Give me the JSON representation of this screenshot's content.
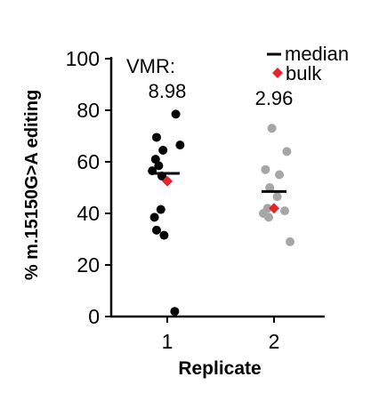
{
  "chart_data": {
    "type": "scatter",
    "xlabel": "Replicate",
    "ylabel": "% m.15150G>A editing",
    "ylim": [
      0,
      100
    ],
    "yticks": [
      "0",
      "20",
      "40",
      "60",
      "80",
      "100"
    ],
    "categories": [
      "1",
      "2"
    ],
    "vmr_label": "VMR:",
    "replicates": [
      {
        "name": "1",
        "color": "#000000",
        "vmr": "8.98",
        "median": 55.5,
        "bulk": 52.5,
        "points": [
          {
            "dx": 0.08,
            "y": 78.5
          },
          {
            "dx": -0.1,
            "y": 69.5
          },
          {
            "dx": 0.12,
            "y": 66.5
          },
          {
            "dx": -0.04,
            "y": 64.5
          },
          {
            "dx": -0.11,
            "y": 61.0
          },
          {
            "dx": -0.08,
            "y": 58.5
          },
          {
            "dx": -0.14,
            "y": 56.5
          },
          {
            "dx": -0.05,
            "y": 54.5
          },
          {
            "dx": -0.06,
            "y": 41.5
          },
          {
            "dx": -0.12,
            "y": 38.5
          },
          {
            "dx": -0.1,
            "y": 33.5
          },
          {
            "dx": -0.03,
            "y": 31.5
          },
          {
            "dx": 0.07,
            "y": 2.0
          }
        ]
      },
      {
        "name": "2",
        "color": "#a6a6a6",
        "vmr": "2.96",
        "median": 48.5,
        "bulk": 42.0,
        "points": [
          {
            "dx": -0.02,
            "y": 73.0
          },
          {
            "dx": 0.12,
            "y": 64.0
          },
          {
            "dx": -0.08,
            "y": 57.0
          },
          {
            "dx": 0.05,
            "y": 55.0
          },
          {
            "dx": -0.04,
            "y": 50.0
          },
          {
            "dx": 0.03,
            "y": 46.5
          },
          {
            "dx": -0.06,
            "y": 42.0
          },
          {
            "dx": 0.1,
            "y": 41.0
          },
          {
            "dx": -0.1,
            "y": 40.0
          },
          {
            "dx": -0.05,
            "y": 38.5
          },
          {
            "dx": 0.15,
            "y": 29.0
          }
        ]
      }
    ],
    "legend": {
      "position": "top-right",
      "median_label": "median",
      "bulk_label": "bulk",
      "bulk_color": "#e8242b",
      "median_color": "#000000"
    }
  }
}
